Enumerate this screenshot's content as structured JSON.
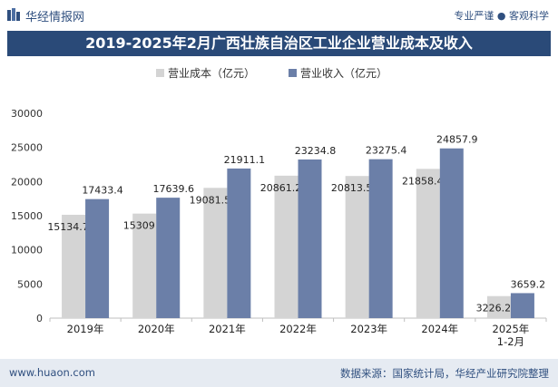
{
  "header": {
    "brand": "华经情报网",
    "tagline": "专业严谨 ● 客观科学"
  },
  "footer": {
    "website": "www.huaon.com",
    "source": "数据来源：国家统计局，华经产业研究院整理"
  },
  "colors": {
    "cost": "#d4d4d4",
    "revenue": "#6b7fa8",
    "title_bg": "#2a4a78",
    "brand": "#2f4f7f"
  },
  "chart_data": {
    "type": "bar",
    "title": "2019-2025年2月广西壮族自治区工业企业营业成本及收入",
    "categories": [
      "2019年",
      "2020年",
      "2021年",
      "2022年",
      "2023年",
      "2024年",
      "2025年\n1-2月"
    ],
    "series": [
      {
        "name": "营业成本（亿元）",
        "values": [
          15134.7,
          15309,
          19081.5,
          20861.2,
          20813.5,
          21858.4,
          3226.2
        ],
        "labels": [
          "15134.7",
          "15309",
          "19081.5",
          "20861.2",
          "20813.5",
          "21858.4",
          "3226.2"
        ]
      },
      {
        "name": "营业收入（亿元）",
        "values": [
          17433.4,
          17639.6,
          21911.1,
          23234.8,
          23275.4,
          24857.9,
          3659.2
        ],
        "labels": [
          "17433.4",
          "17639.6",
          "21911.1",
          "23234.8",
          "23275.4",
          "24857.9",
          "3659.2"
        ]
      }
    ],
    "ylim": [
      0,
      30000
    ],
    "yticks": [
      0,
      5000,
      10000,
      15000,
      20000,
      25000,
      30000
    ],
    "legend_position": "top-center",
    "grid": false
  }
}
